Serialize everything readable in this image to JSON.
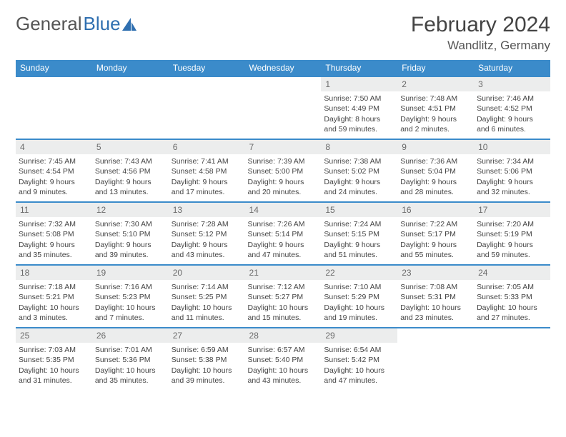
{
  "logo": {
    "part1": "General",
    "part2": "Blue"
  },
  "title": "February 2024",
  "location": "Wandlitz, Germany",
  "colors": {
    "header_bg": "#3b8bca",
    "header_text": "#ffffff",
    "daynum_bg": "#eceded",
    "accent_blue": "#2f6fb0"
  },
  "fonts": {
    "title_size": 30,
    "location_size": 17,
    "day_header_size": 12,
    "body_size": 10.5
  },
  "day_names": [
    "Sunday",
    "Monday",
    "Tuesday",
    "Wednesday",
    "Thursday",
    "Friday",
    "Saturday"
  ],
  "weeks": [
    [
      null,
      null,
      null,
      null,
      {
        "n": "1",
        "sunrise": "7:50 AM",
        "sunset": "4:49 PM",
        "day_h": "8",
        "day_m": "59"
      },
      {
        "n": "2",
        "sunrise": "7:48 AM",
        "sunset": "4:51 PM",
        "day_h": "9",
        "day_m": "2"
      },
      {
        "n": "3",
        "sunrise": "7:46 AM",
        "sunset": "4:52 PM",
        "day_h": "9",
        "day_m": "6"
      }
    ],
    [
      {
        "n": "4",
        "sunrise": "7:45 AM",
        "sunset": "4:54 PM",
        "day_h": "9",
        "day_m": "9"
      },
      {
        "n": "5",
        "sunrise": "7:43 AM",
        "sunset": "4:56 PM",
        "day_h": "9",
        "day_m": "13"
      },
      {
        "n": "6",
        "sunrise": "7:41 AM",
        "sunset": "4:58 PM",
        "day_h": "9",
        "day_m": "17"
      },
      {
        "n": "7",
        "sunrise": "7:39 AM",
        "sunset": "5:00 PM",
        "day_h": "9",
        "day_m": "20"
      },
      {
        "n": "8",
        "sunrise": "7:38 AM",
        "sunset": "5:02 PM",
        "day_h": "9",
        "day_m": "24"
      },
      {
        "n": "9",
        "sunrise": "7:36 AM",
        "sunset": "5:04 PM",
        "day_h": "9",
        "day_m": "28"
      },
      {
        "n": "10",
        "sunrise": "7:34 AM",
        "sunset": "5:06 PM",
        "day_h": "9",
        "day_m": "32"
      }
    ],
    [
      {
        "n": "11",
        "sunrise": "7:32 AM",
        "sunset": "5:08 PM",
        "day_h": "9",
        "day_m": "35"
      },
      {
        "n": "12",
        "sunrise": "7:30 AM",
        "sunset": "5:10 PM",
        "day_h": "9",
        "day_m": "39"
      },
      {
        "n": "13",
        "sunrise": "7:28 AM",
        "sunset": "5:12 PM",
        "day_h": "9",
        "day_m": "43"
      },
      {
        "n": "14",
        "sunrise": "7:26 AM",
        "sunset": "5:14 PM",
        "day_h": "9",
        "day_m": "47"
      },
      {
        "n": "15",
        "sunrise": "7:24 AM",
        "sunset": "5:15 PM",
        "day_h": "9",
        "day_m": "51"
      },
      {
        "n": "16",
        "sunrise": "7:22 AM",
        "sunset": "5:17 PM",
        "day_h": "9",
        "day_m": "55"
      },
      {
        "n": "17",
        "sunrise": "7:20 AM",
        "sunset": "5:19 PM",
        "day_h": "9",
        "day_m": "59"
      }
    ],
    [
      {
        "n": "18",
        "sunrise": "7:18 AM",
        "sunset": "5:21 PM",
        "day_h": "10",
        "day_m": "3"
      },
      {
        "n": "19",
        "sunrise": "7:16 AM",
        "sunset": "5:23 PM",
        "day_h": "10",
        "day_m": "7"
      },
      {
        "n": "20",
        "sunrise": "7:14 AM",
        "sunset": "5:25 PM",
        "day_h": "10",
        "day_m": "11"
      },
      {
        "n": "21",
        "sunrise": "7:12 AM",
        "sunset": "5:27 PM",
        "day_h": "10",
        "day_m": "15"
      },
      {
        "n": "22",
        "sunrise": "7:10 AM",
        "sunset": "5:29 PM",
        "day_h": "10",
        "day_m": "19"
      },
      {
        "n": "23",
        "sunrise": "7:08 AM",
        "sunset": "5:31 PM",
        "day_h": "10",
        "day_m": "23"
      },
      {
        "n": "24",
        "sunrise": "7:05 AM",
        "sunset": "5:33 PM",
        "day_h": "10",
        "day_m": "27"
      }
    ],
    [
      {
        "n": "25",
        "sunrise": "7:03 AM",
        "sunset": "5:35 PM",
        "day_h": "10",
        "day_m": "31"
      },
      {
        "n": "26",
        "sunrise": "7:01 AM",
        "sunset": "5:36 PM",
        "day_h": "10",
        "day_m": "35"
      },
      {
        "n": "27",
        "sunrise": "6:59 AM",
        "sunset": "5:38 PM",
        "day_h": "10",
        "day_m": "39"
      },
      {
        "n": "28",
        "sunrise": "6:57 AM",
        "sunset": "5:40 PM",
        "day_h": "10",
        "day_m": "43"
      },
      {
        "n": "29",
        "sunrise": "6:54 AM",
        "sunset": "5:42 PM",
        "day_h": "10",
        "day_m": "47"
      },
      null,
      null
    ]
  ],
  "labels": {
    "sunrise": "Sunrise:",
    "sunset": "Sunset:",
    "daylight": "Daylight:",
    "hours": "hours",
    "and": "and",
    "minutes": "minutes."
  }
}
